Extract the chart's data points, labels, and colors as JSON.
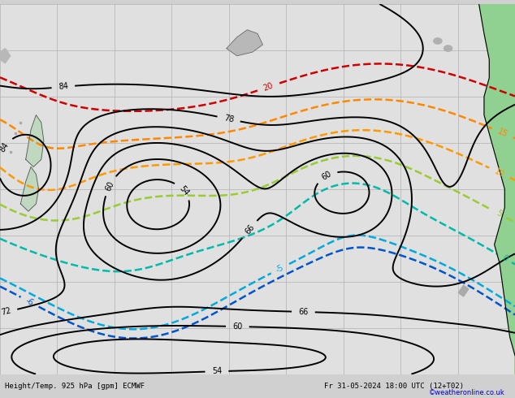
{
  "bottom_label": "Height/Temp. 925 hPa [gpm] ECMWF",
  "bottom_right": "Fr 31-05-2024 18:00 UTC (12+T02)",
  "copyright": "©weatheronline.co.uk",
  "bg_color": "#d0d0d0",
  "ocean_color": "#e0e0e0",
  "land_color_nz": "#c8c8c8",
  "land_color_sa": "#90d090",
  "grid_color": "#b0b0b0",
  "height_color": "#000000",
  "temp_colors": {
    "20": "#cc0000",
    "15": "#ff8800",
    "10": "#ff9900",
    "5": "#99cc33",
    "0": "#00bbaa",
    "-5": "#00aadd",
    "-6": "#0055cc"
  },
  "figsize": [
    6.34,
    4.9
  ],
  "dpi": 100
}
